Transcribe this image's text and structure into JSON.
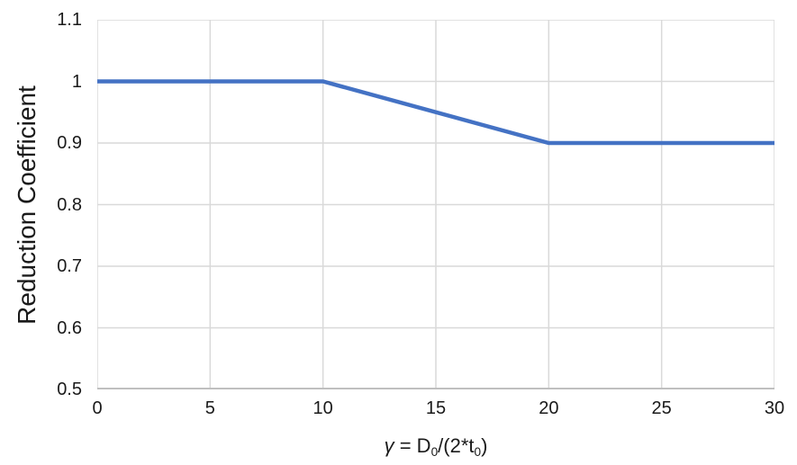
{
  "chart_data": {
    "type": "line",
    "title": "",
    "xlabel": "γ = D0/(2*t0)",
    "xlabel_parts": {
      "gamma": "γ",
      "eq": " = D",
      "sub1": "0",
      "mid": "/(2*t",
      "sub2": "0",
      "close": ")"
    },
    "ylabel": "Reduction Coefficient",
    "x": [
      0,
      10,
      20,
      30
    ],
    "series": [
      {
        "name": "Reduction Coefficient",
        "values": [
          1.0,
          1.0,
          0.9,
          0.9
        ]
      }
    ],
    "xlim": [
      0,
      30
    ],
    "ylim": [
      0.5,
      1.1
    ],
    "xticks": {
      "values": [
        0,
        5,
        10,
        15,
        20,
        25,
        30
      ],
      "labels": [
        "0",
        "5",
        "10",
        "15",
        "20",
        "25",
        "30"
      ]
    },
    "yticks": {
      "values": [
        0.5,
        0.6,
        0.7,
        0.8,
        0.9,
        1.0,
        1.1
      ],
      "labels": [
        "0.5",
        "0.6",
        "0.7",
        "0.8",
        "0.9",
        "1",
        "1.1"
      ]
    },
    "grid": "both",
    "legend": "none",
    "line_width": 4.5,
    "colors": {
      "line": "#4472C4",
      "grid": "#D9D9D9",
      "axis": "#BFBFBF",
      "text": "#1A1A1A",
      "background": "#FFFFFF"
    }
  }
}
